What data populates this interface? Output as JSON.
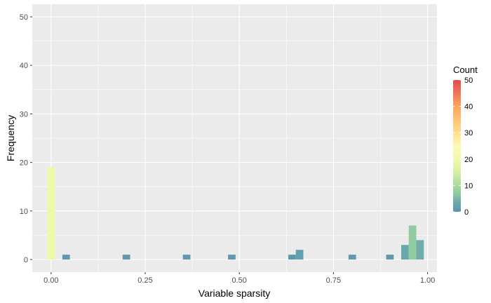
{
  "chart_data": {
    "type": "bar",
    "title": "",
    "xlabel": "Variable sparsity",
    "ylabel": "Frequency",
    "xlim": [
      -0.05,
      1.025
    ],
    "ylim": [
      -2.6,
      52.6
    ],
    "x_ticks": [
      0,
      0.25,
      0.5,
      0.75,
      1.0
    ],
    "x_tick_labels": [
      "0.00",
      "0.25",
      "0.50",
      "0.75",
      "1.00"
    ],
    "y_ticks": [
      0,
      10,
      20,
      30,
      40,
      50
    ],
    "y_tick_labels": [
      "0",
      "10",
      "20",
      "30",
      "40",
      "50"
    ],
    "bin_width": 0.02,
    "bins": [
      {
        "x": 0.0,
        "count": 19
      },
      {
        "x": 0.04,
        "count": 1
      },
      {
        "x": 0.2,
        "count": 1
      },
      {
        "x": 0.36,
        "count": 1
      },
      {
        "x": 0.48,
        "count": 1
      },
      {
        "x": 0.64,
        "count": 1
      },
      {
        "x": 0.66,
        "count": 2
      },
      {
        "x": 0.8,
        "count": 1
      },
      {
        "x": 0.9,
        "count": 1
      },
      {
        "x": 0.94,
        "count": 3
      },
      {
        "x": 0.96,
        "count": 7
      },
      {
        "x": 0.98,
        "count": 4
      }
    ],
    "grid": true,
    "panel_background": "#ebebeb",
    "grid_color": "#ffffff",
    "legend": {
      "title": "Count",
      "position": "right",
      "min": 0,
      "max": 50,
      "ticks": [
        0,
        10,
        20,
        30,
        40,
        50
      ],
      "tick_labels": [
        "0",
        "10",
        "20",
        "30",
        "40",
        "50"
      ],
      "color_stops": [
        {
          "value": 0,
          "color": "#5e8fae"
        },
        {
          "value": 2,
          "color": "#63a0b0"
        },
        {
          "value": 4,
          "color": "#71abab"
        },
        {
          "value": 7,
          "color": "#8fcb9e"
        },
        {
          "value": 10,
          "color": "#a8d9a0"
        },
        {
          "value": 15,
          "color": "#d6efa5"
        },
        {
          "value": 19,
          "color": "#edf9a6"
        },
        {
          "value": 25,
          "color": "#fef9b8"
        },
        {
          "value": 30,
          "color": "#fee08b"
        },
        {
          "value": 40,
          "color": "#fca45f"
        },
        {
          "value": 50,
          "color": "#e04a4f"
        }
      ]
    }
  }
}
